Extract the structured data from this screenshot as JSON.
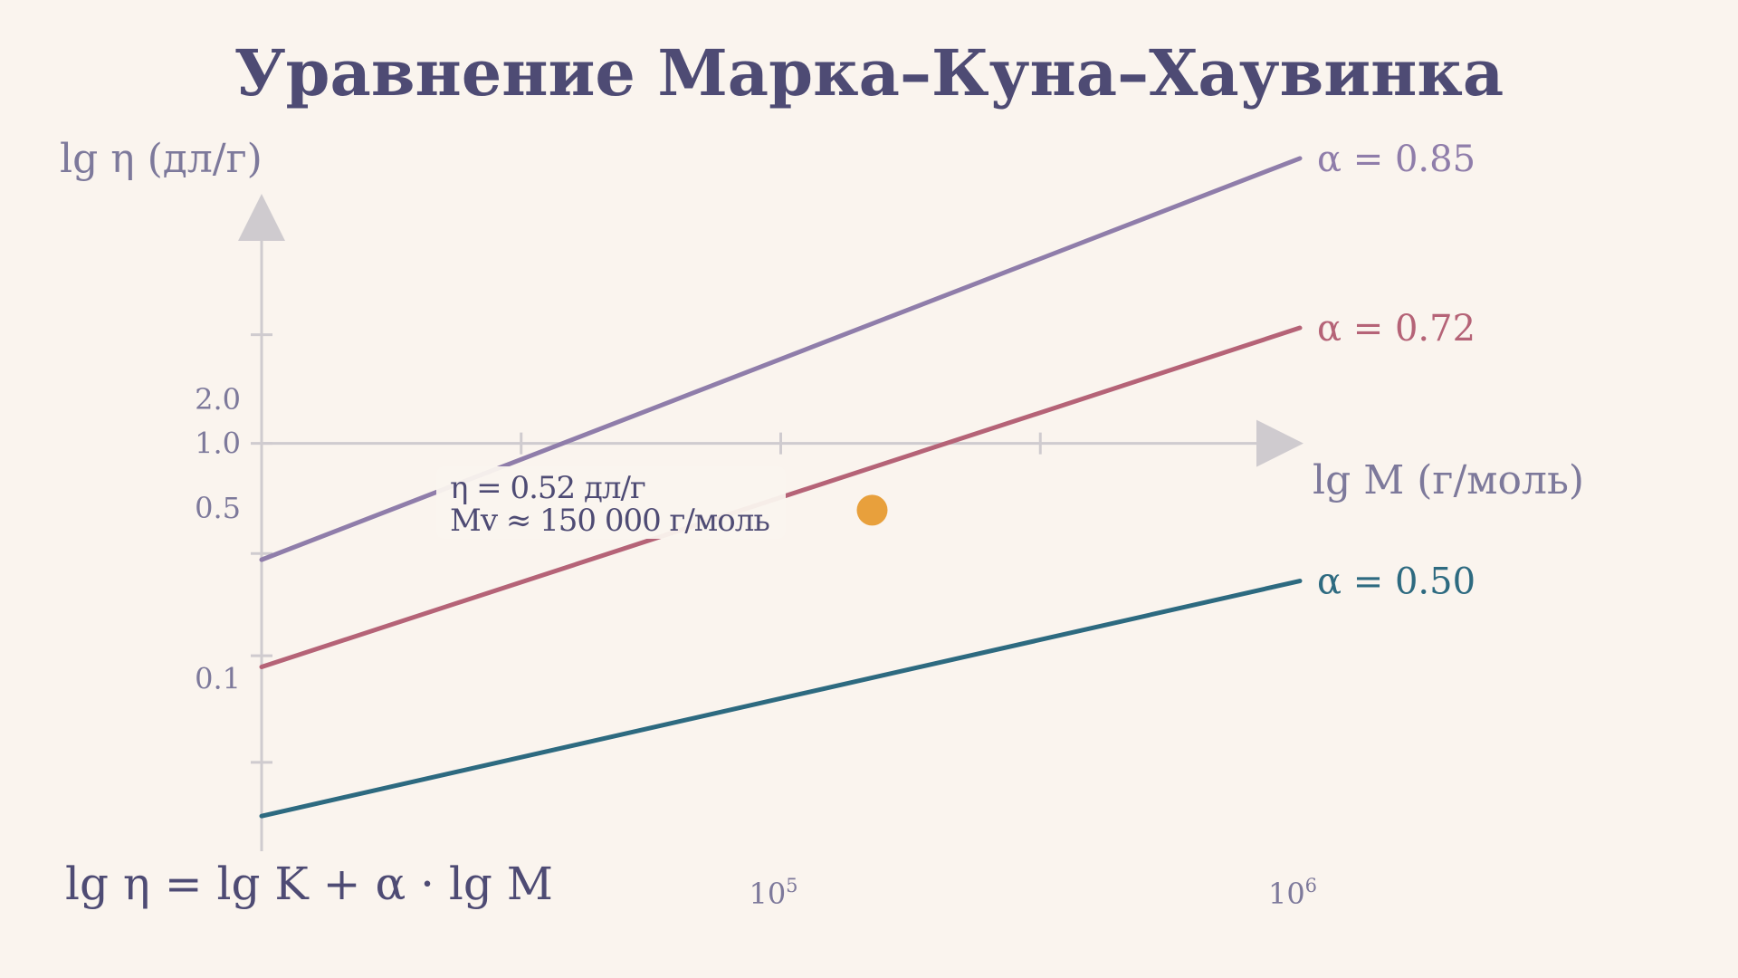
{
  "title": "Уравнение Марка–Куна–Хаувинка",
  "formula": "lg η = lg K + α · lg M",
  "colors": {
    "background": "#faf4ee",
    "title": "#4e4b74",
    "axis": "#cfcbcf",
    "axis_text": "#7d799b",
    "highlight_point": "#e8a03c"
  },
  "chart_data": {
    "type": "line",
    "xlabel": "lg M (г/моль)",
    "ylabel": "lg η (дл/г)",
    "x_scale": "log",
    "y_scale": "log",
    "xlim": [
      10000,
      1000000
    ],
    "ylim": [
      0.022,
      10
    ],
    "x_ticks": [
      {
        "value": 100000,
        "label": "10",
        "sup": "5"
      },
      {
        "value": 1000000,
        "label": "10",
        "sup": "6"
      }
    ],
    "y_ticks": [
      {
        "value": 2.0,
        "label": "2.0"
      },
      {
        "value": 1.0,
        "label": "1.0"
      },
      {
        "value": 0.5,
        "label": "0.5"
      },
      {
        "value": 0.1,
        "label": "0.1"
      }
    ],
    "x_minor_ticks": [
      31623,
      100000,
      316228
    ],
    "y_minor_ticks": [
      8.1,
      2.9,
      1.0,
      0.34,
      0.125,
      0.044
    ],
    "series": [
      {
        "name": "α = 0.85",
        "alpha": 0.85,
        "color": "#8f7daa",
        "x": [
          10000,
          1000000
        ],
        "y": [
          0.32,
          16.3
        ]
      },
      {
        "name": "α = 0.72",
        "alpha": 0.72,
        "color": "#b56377",
        "x": [
          10000,
          1000000
        ],
        "y": [
          0.112,
          3.1
        ]
      },
      {
        "name": "α = 0.50",
        "alpha": 0.5,
        "color": "#2d6a80",
        "x": [
          10000,
          1000000
        ],
        "y": [
          0.026,
          0.26
        ]
      }
    ],
    "highlight": {
      "x": 150000,
      "y": 0.52,
      "line1": "η = 0.52 дл/г",
      "line2": "Mv ≈  150 000 г/моль"
    }
  }
}
